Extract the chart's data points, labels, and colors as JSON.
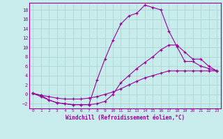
{
  "xlabel": "Windchill (Refroidissement éolien,°C)",
  "ylabel": "",
  "bg_color": "#c8ecec",
  "grid_color": "#b0d8d8",
  "line_color": "#990099",
  "xlim": [
    -0.5,
    23.5
  ],
  "ylim": [
    -3.0,
    19.5
  ],
  "xticks": [
    0,
    1,
    2,
    3,
    4,
    5,
    6,
    7,
    8,
    9,
    10,
    11,
    12,
    13,
    14,
    15,
    16,
    17,
    18,
    19,
    20,
    21,
    22,
    23
  ],
  "yticks": [
    -2,
    0,
    2,
    4,
    6,
    8,
    10,
    12,
    14,
    16,
    18
  ],
  "line1_x": [
    0,
    1,
    2,
    3,
    4,
    5,
    6,
    7,
    8,
    9,
    10,
    11,
    12,
    13,
    14,
    15,
    16,
    17,
    18,
    19,
    20,
    21,
    22,
    23
  ],
  "line1_y": [
    0.2,
    -0.2,
    -1.2,
    -1.8,
    -2.0,
    -2.2,
    -2.2,
    -2.2,
    3.0,
    7.5,
    11.5,
    15.0,
    16.7,
    17.3,
    19.0,
    18.5,
    18.0,
    13.5,
    10.2,
    7.0,
    7.0,
    6.0,
    5.5,
    5.0
  ],
  "line2_x": [
    0,
    1,
    2,
    3,
    4,
    5,
    6,
    7,
    8,
    9,
    10,
    11,
    12,
    13,
    14,
    15,
    16,
    17,
    18,
    19,
    20,
    21,
    22,
    23
  ],
  "line2_y": [
    0.2,
    -0.5,
    -1.2,
    -1.8,
    -2.0,
    -2.2,
    -2.2,
    -2.2,
    -2.0,
    -1.5,
    0.0,
    2.5,
    4.0,
    5.5,
    6.8,
    8.0,
    9.5,
    10.5,
    10.5,
    9.0,
    7.5,
    7.5,
    6.0,
    5.0
  ],
  "line3_x": [
    0,
    1,
    2,
    3,
    4,
    5,
    6,
    7,
    8,
    9,
    10,
    11,
    12,
    13,
    14,
    15,
    16,
    17,
    18,
    19,
    20,
    21,
    22,
    23
  ],
  "line3_y": [
    0.2,
    -0.2,
    -0.5,
    -0.8,
    -1.0,
    -1.0,
    -1.0,
    -0.8,
    -0.5,
    0.0,
    0.5,
    1.2,
    2.0,
    2.8,
    3.5,
    4.0,
    4.5,
    5.0,
    5.0,
    5.0,
    5.0,
    5.0,
    5.0,
    5.0
  ]
}
